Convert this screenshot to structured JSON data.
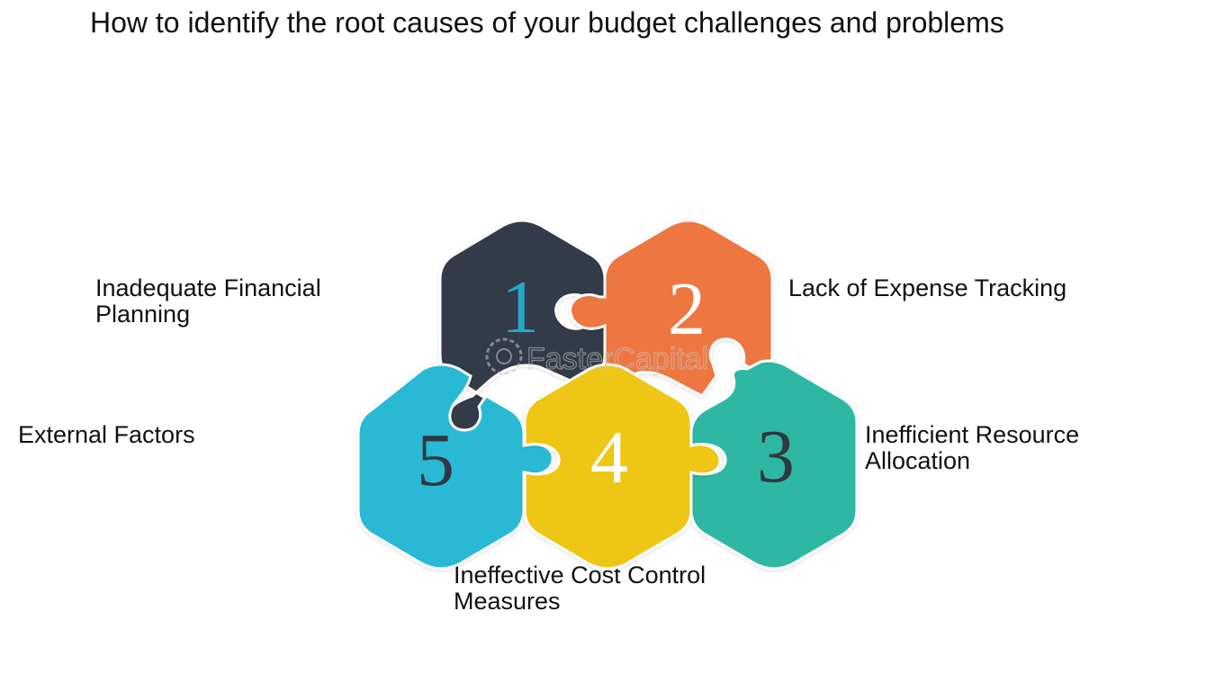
{
  "title": "How to identify the root causes of your budget challenges and problems",
  "watermark": "FasterCapital",
  "pieces": [
    {
      "number": "1",
      "label": "Inadequate Financial Planning",
      "color": "#333b46",
      "number_color": "#2aa7c6"
    },
    {
      "number": "2",
      "label": "Lack of Expense Tracking",
      "color": "#ee7640",
      "number_color": "#ffffff"
    },
    {
      "number": "3",
      "label": "Inefficient Resource Allocation",
      "color": "#2db8a3",
      "number_color": "#2f3842"
    },
    {
      "number": "4",
      "label": "Ineffective Cost Control Measures",
      "color": "#eec612",
      "number_color": "#ffffff"
    },
    {
      "number": "5",
      "label": "External Factors",
      "color": "#2bb9d5",
      "number_color": "#2f3842"
    }
  ]
}
